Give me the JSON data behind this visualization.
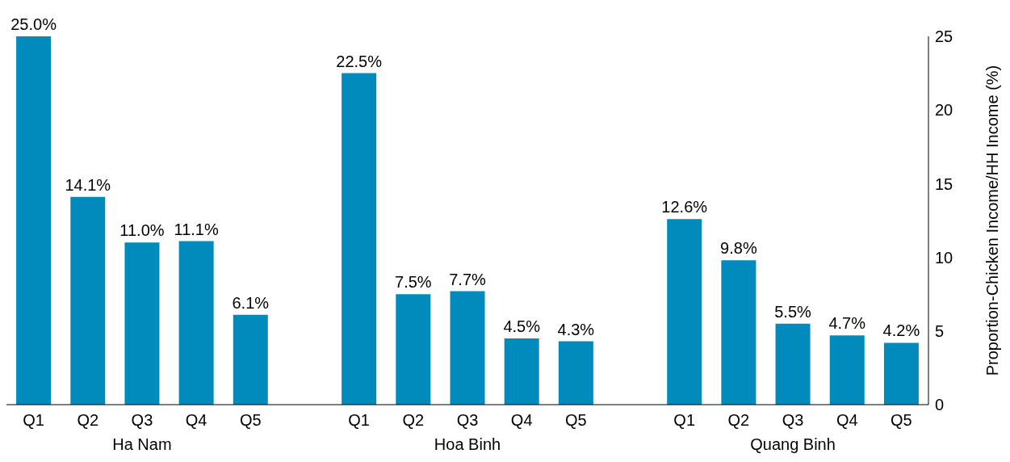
{
  "chart_data": {
    "type": "bar",
    "ylabel": "Proportion-Chicken Income/HH Income (%)",
    "categories": [
      "Q1",
      "Q2",
      "Q3",
      "Q4",
      "Q5",
      null,
      "Q1",
      "Q2",
      "Q3",
      "Q4",
      "Q5",
      null,
      "Q1",
      "Q2",
      "Q3",
      "Q4",
      "Q5"
    ],
    "values": [
      25.0,
      14.1,
      11.0,
      11.1,
      6.1,
      null,
      22.5,
      7.5,
      7.7,
      4.5,
      4.3,
      null,
      12.6,
      9.8,
      5.5,
      4.7,
      4.2
    ],
    "value_labels": [
      "25.0%",
      "14.1%",
      "11.0%",
      "11.1%",
      "6.1%",
      null,
      "22.5%",
      "7.5%",
      "7.7%",
      "4.5%",
      "4.3%",
      null,
      "12.6%",
      "9.8%",
      "5.5%",
      "4.7%",
      "4.2%"
    ],
    "color": "#008bbc",
    "ylim": [
      0,
      25
    ],
    "yticks": [
      0,
      5,
      10,
      15,
      20,
      25
    ],
    "grid": false,
    "annotations": [
      "Ha Nam",
      "Hoa Binh",
      "Quang Binh"
    ]
  }
}
